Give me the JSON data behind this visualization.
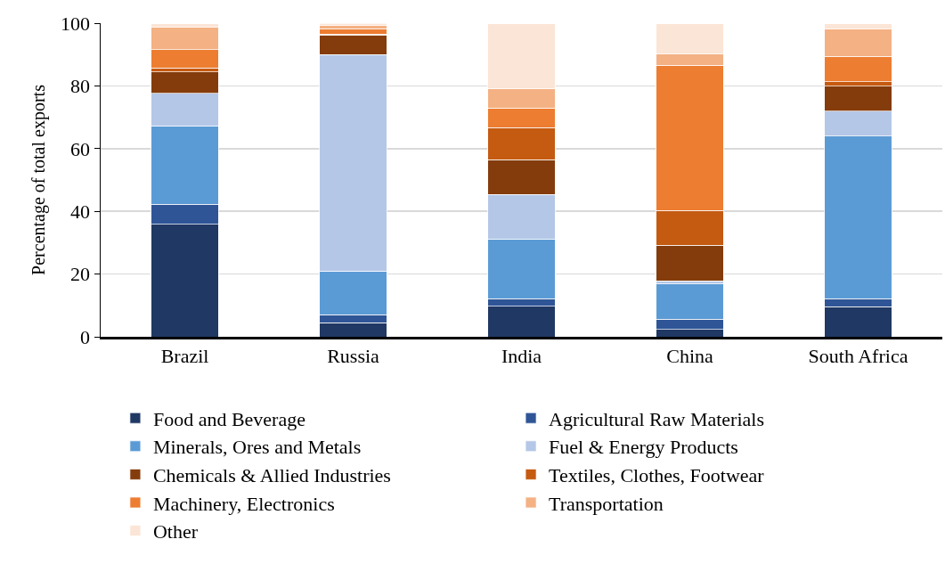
{
  "chart_data": {
    "type": "bar",
    "stacked": true,
    "ylabel": "Percentage of total exports",
    "categories": [
      "Brazil",
      "Russia",
      "India",
      "China",
      "South Africa"
    ],
    "ylim": [
      0,
      100
    ],
    "yticks": [
      0,
      20,
      40,
      60,
      80,
      100
    ],
    "grid": "y",
    "legend": "bottom",
    "series": [
      {
        "name": "Food and Beverage",
        "color": "#203864",
        "values": [
          35.8,
          4.5,
          9.7,
          2.3,
          9.6
        ]
      },
      {
        "name": "Agricultural Raw Materials",
        "color": "#2f5597",
        "values": [
          6.5,
          2.5,
          2.5,
          3.3,
          2.6
        ]
      },
      {
        "name": "Minerals, Ores and Metals",
        "color": "#5b9bd5",
        "values": [
          25,
          14,
          19,
          11.3,
          51.8
        ]
      },
      {
        "name": "Fuel & Energy Products",
        "color": "#b4c7e7",
        "values": [
          10.3,
          69,
          14.2,
          0.9,
          8
        ]
      },
      {
        "name": "Chemicals & Allied Industries",
        "color": "#843c0c",
        "values": [
          6.9,
          6.2,
          11.1,
          11.4,
          7.9
        ]
      },
      {
        "name": "Textiles, Clothes, Footwear",
        "color": "#c55a11",
        "values": [
          1.2,
          0.3,
          10.2,
          11.1,
          1.4
        ]
      },
      {
        "name": "Machinery, Electronics",
        "color": "#ed7d31",
        "values": [
          5.9,
          1.7,
          6.2,
          46.3,
          8.1
        ]
      },
      {
        "name": "Transportation",
        "color": "#f4b183",
        "values": [
          7.1,
          1.2,
          6.3,
          3.5,
          8.8
        ]
      },
      {
        "name": "Other",
        "color": "#fbe5d6",
        "values": [
          1.1,
          0.6,
          20.6,
          9.7,
          1.6
        ]
      }
    ]
  }
}
